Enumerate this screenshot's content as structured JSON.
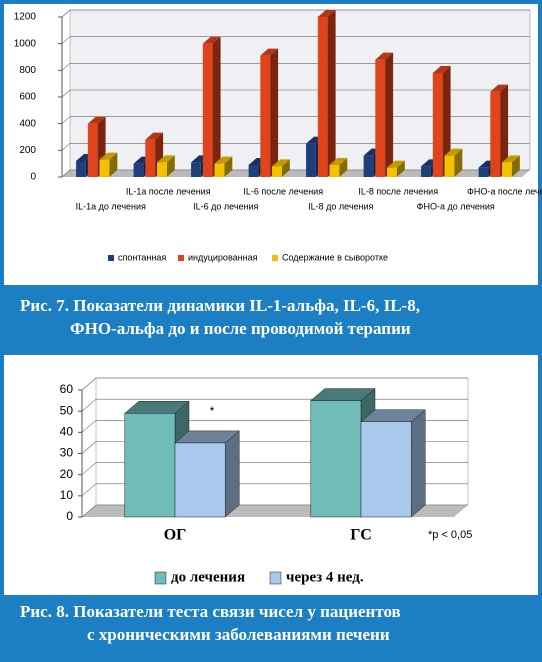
{
  "chart_data": [
    {
      "type": "bar",
      "caption": [
        "Рис. 7. Показатели динамики IL-1-альфа, IL-6, IL-8,",
        "ФНО-альфа до и после проводимой терапии"
      ],
      "categories": [
        "IL-1a до лечения",
        "IL-1a после лечения",
        "IL-6 до лечения",
        "IL-6 после лечения",
        "IL-8 до лечения",
        "IL-8 после лечения",
        "ФНО-a до лечения",
        "ФНО-a после лечения"
      ],
      "series": [
        {
          "name": "спонтанная",
          "color": "#1f3f7a",
          "values": [
            120,
            100,
            110,
            90,
            250,
            160,
            80,
            70
          ]
        },
        {
          "name": "индуцированная",
          "color": "#e0441c",
          "values": [
            400,
            280,
            1000,
            910,
            1200,
            880,
            780,
            640
          ]
        },
        {
          "name": "Содержание в сыворотке",
          "color": "#f2c200",
          "values": [
            130,
            110,
            100,
            80,
            90,
            70,
            160,
            110
          ]
        }
      ],
      "ylim": [
        0,
        1200
      ],
      "yticks": [
        0,
        200,
        400,
        600,
        800,
        1000,
        1200
      ],
      "grid": true
    },
    {
      "type": "bar",
      "caption": [
        "Рис. 8. Показатели теста связи чисел у пациентов",
        "с хроническими заболеваниями печени"
      ],
      "categories": [
        "ОГ",
        "ГС"
      ],
      "series": [
        {
          "name": "до лечения",
          "color": "#6fbcb8",
          "values": [
            49,
            55
          ]
        },
        {
          "name": "через 4 нед.",
          "color": "#a8c8ec",
          "values": [
            35,
            45
          ]
        }
      ],
      "annotation": "*",
      "note": "*p < 0,05",
      "ylim": [
        0,
        60
      ],
      "yticks": [
        0,
        10,
        20,
        30,
        40,
        50,
        60
      ],
      "grid": true
    }
  ]
}
